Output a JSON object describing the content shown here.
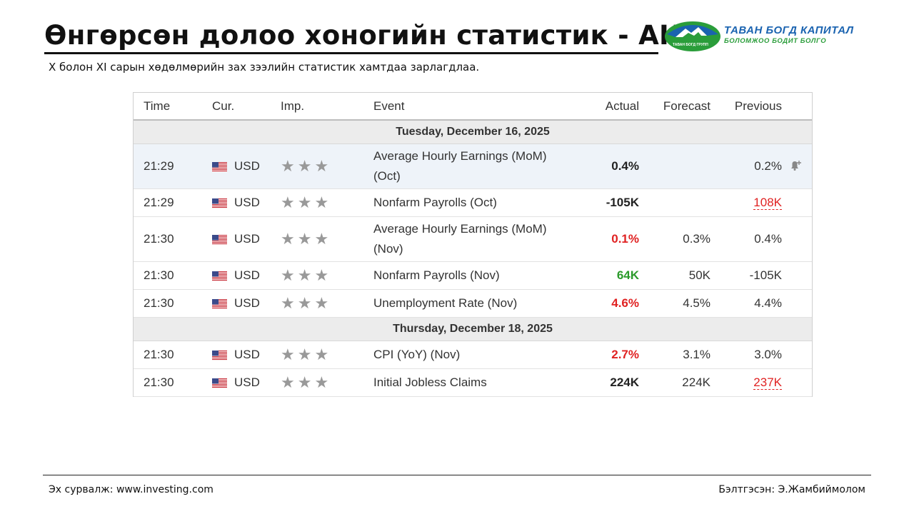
{
  "header": {
    "title": "Өнгөрсөн долоо хоногийн статистик - АНУ",
    "subtitle": "X болон XI сарын хөдөлмөрийн зах зээлийн статистик хамтдаа зарлагдлаа."
  },
  "logo": {
    "line1": "ТАВАН БОГД КАПИТАЛ",
    "line2": "БОЛОМЖОО БОДИТ БОЛГО",
    "mini": "ТАВАН БОГД ГРУПП",
    "colors": {
      "blue": "#1a63b0",
      "green": "#2a9d3a"
    }
  },
  "table": {
    "columns": {
      "time": "Time",
      "cur": "Cur.",
      "imp": "Imp.",
      "event": "Event",
      "actual": "Actual",
      "forecast": "Forecast",
      "previous": "Previous"
    },
    "days": [
      {
        "date": "Tuesday, December 16, 2025",
        "rows": [
          {
            "time": "21:29",
            "cur": "USD",
            "event": "Average Hourly Earnings (MoM) (Oct)",
            "actual": "0.4%",
            "actual_color": "black",
            "forecast": "",
            "previous": "0.2%",
            "previous_color": "normal",
            "highlight": true,
            "alert": true
          },
          {
            "time": "21:29",
            "cur": "USD",
            "event": "Nonfarm Payrolls (Oct)",
            "actual": "-105K",
            "actual_color": "black",
            "forecast": "",
            "previous": "108K",
            "previous_color": "red",
            "highlight": false,
            "alert": false
          },
          {
            "time": "21:30",
            "cur": "USD",
            "event": "Average Hourly Earnings (MoM) (Nov)",
            "actual": "0.1%",
            "actual_color": "red",
            "forecast": "0.3%",
            "previous": "0.4%",
            "previous_color": "normal",
            "highlight": false,
            "alert": false
          },
          {
            "time": "21:30",
            "cur": "USD",
            "event": "Nonfarm Payrolls (Nov)",
            "actual": "64K",
            "actual_color": "green",
            "forecast": "50K",
            "previous": "-105K",
            "previous_color": "normal",
            "highlight": false,
            "alert": false
          },
          {
            "time": "21:30",
            "cur": "USD",
            "event": "Unemployment Rate (Nov)",
            "actual": "4.6%",
            "actual_color": "red",
            "forecast": "4.5%",
            "previous": "4.4%",
            "previous_color": "normal",
            "highlight": false,
            "alert": false
          }
        ]
      },
      {
        "date": "Thursday, December 18, 2025",
        "rows": [
          {
            "time": "21:30",
            "cur": "USD",
            "event": "CPI (YoY) (Nov)",
            "actual": "2.7%",
            "actual_color": "red",
            "forecast": "3.1%",
            "previous": "3.0%",
            "previous_color": "normal",
            "highlight": false,
            "alert": false
          },
          {
            "time": "21:30",
            "cur": "USD",
            "event": "Initial Jobless Claims",
            "actual": "224K",
            "actual_color": "black",
            "forecast": "224K",
            "previous": "237K",
            "previous_color": "red",
            "highlight": false,
            "alert": false
          }
        ]
      }
    ],
    "importance_stars": 3,
    "icons": {
      "flag": "us-flag-icon",
      "star": "star-icon",
      "alert": "bell-plus-icon"
    }
  },
  "footer": {
    "source": "Эх сурвалж: www.investing.com",
    "author": "Бэлтгэсэн: Э.Жамбиймолом"
  }
}
